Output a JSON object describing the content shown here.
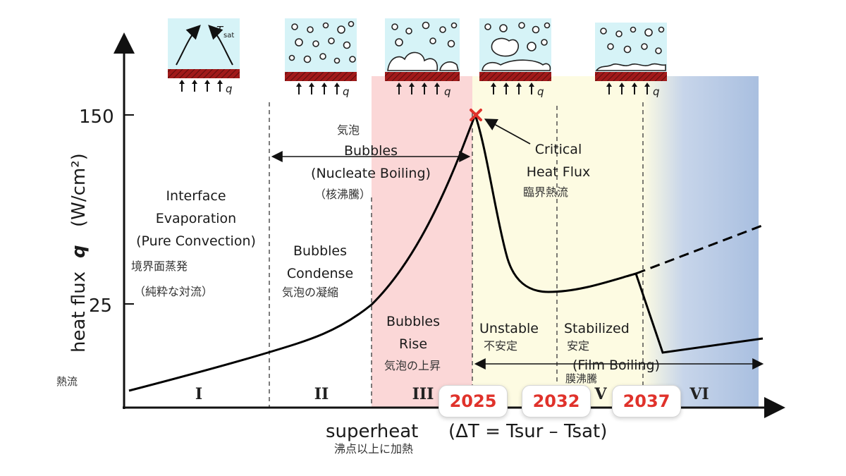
{
  "axes": {
    "y_label_main": "heat flux",
    "y_label_symbol": "q",
    "y_label_unit": "(W/cm²)",
    "y_label_jp": "熱流",
    "y_ticks": [
      "150",
      "25"
    ],
    "x_label_main": "superheat",
    "x_label_formula": "(ΔT  = Tsur – Tsat)",
    "x_label_jp": "沸点以上に加熱"
  },
  "regions": [
    {
      "roman": "I",
      "lines": [
        "Interface",
        "Evaporation",
        "(Pure Convection)"
      ],
      "jp": [
        "境界面蒸発",
        "（純粋な対流）"
      ]
    },
    {
      "roman": "II",
      "lines": [
        "Bubbles",
        "Condense"
      ],
      "jp": [
        "気泡の凝縮"
      ]
    },
    {
      "roman": "III",
      "lines": [
        "Bubbles",
        "Rise"
      ],
      "jp": [
        "気泡の上昇"
      ]
    },
    {
      "roman": "VI",
      "lines": [
        "Unstable"
      ],
      "jp": [
        "不安定"
      ]
    },
    {
      "roman": "V",
      "lines": [
        "Stabilized"
      ],
      "jp": [
        "安定"
      ]
    },
    {
      "roman": "VI",
      "lines": [],
      "jp": []
    }
  ],
  "annotations": {
    "nucleate_jp_top": "気泡",
    "nucleate_line1": "Bubbles",
    "nucleate_line2": "(Nucleate Boiling)",
    "nucleate_jp_bottom": "（核沸騰）",
    "chf_line1": "Critical",
    "chf_line2": "Heat Flux",
    "chf_jp": "臨界熱流",
    "film_en": "(Film Boiling)",
    "film_jp": "膜沸騰"
  },
  "insets": {
    "tsat_label": "T",
    "tsat_sub": "sat",
    "q_label": "q"
  },
  "year_badges": [
    "2025",
    "2032",
    "2037"
  ],
  "colors": {
    "pink_band": "#fbd7d7",
    "yellow_band": "#fdfbe2",
    "blue_band": "#c7d5ea",
    "curve": "#000000",
    "chf_marker": "#e0322b",
    "inset_bg": "#d6f3f7",
    "heater": "#a11a1a",
    "badge_text": "#e0322b"
  }
}
